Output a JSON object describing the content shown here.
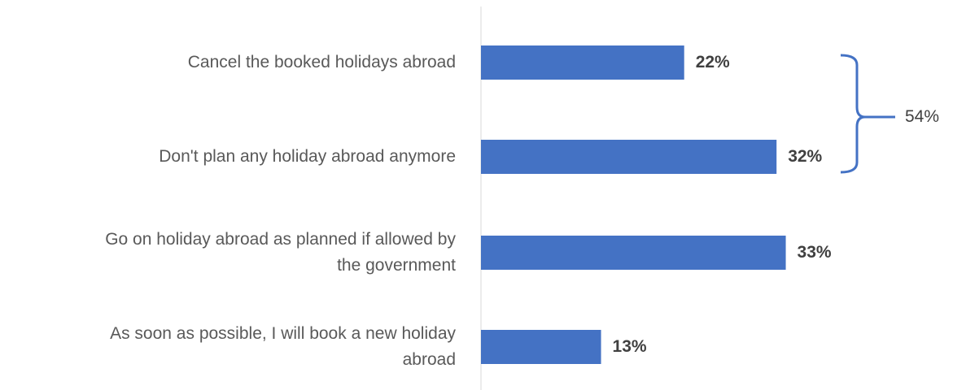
{
  "chart_data": {
    "type": "bar",
    "orientation": "horizontal",
    "categories": [
      "Cancel the booked holidays abroad",
      "Don't plan any holiday abroad anymore",
      "Go on holiday abroad as planned if allowed by\nthe government",
      "As soon as possible, I will book a new holiday\nabroad"
    ],
    "values": [
      22,
      32,
      33,
      13
    ],
    "value_labels": [
      "22%",
      "32%",
      "33%",
      "13%"
    ],
    "bar_color": "#4472C4",
    "annotations": [
      {
        "type": "bracket",
        "covers_categories": [
          0,
          1
        ],
        "label": "54%"
      }
    ],
    "grid": false
  }
}
